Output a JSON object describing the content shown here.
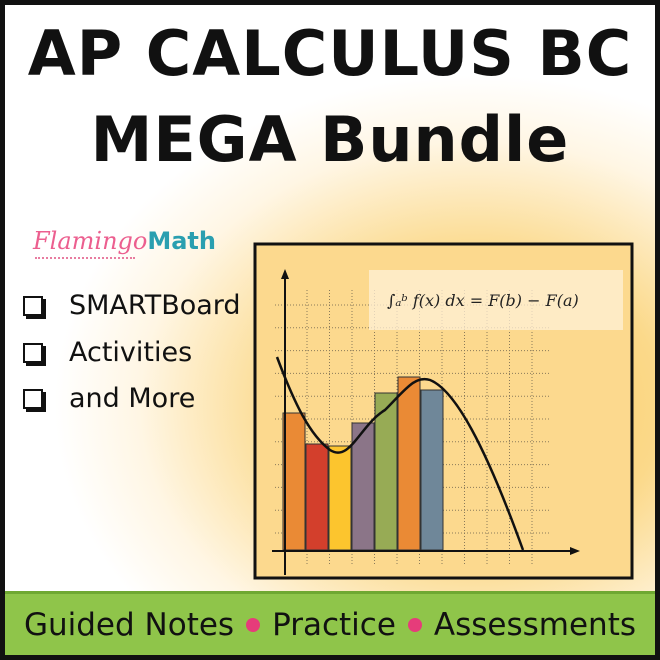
{
  "title": {
    "line1": "AP CALCULUS BC",
    "line2": "MEGA Bundle"
  },
  "logo": {
    "part1": "Flamingo",
    "part2": "Math"
  },
  "checklist": [
    {
      "label": "SMARTBoard"
    },
    {
      "label": "Activities"
    },
    {
      "label": "and More"
    }
  ],
  "footer": {
    "items": [
      "Guided Notes",
      "Practice",
      "Assessments"
    ],
    "dot_color": "#e63c7a",
    "band_color": "#8fc54a"
  },
  "formula": "∫ₐᵇ f(x) dx = F(b) − F(a)",
  "illustration": {
    "bar_colors": [
      "#ea8a35",
      "#d33f2c",
      "#fcc52e",
      "#8b7588",
      "#97ab55",
      "#ea8a35",
      "#6f8799"
    ]
  }
}
